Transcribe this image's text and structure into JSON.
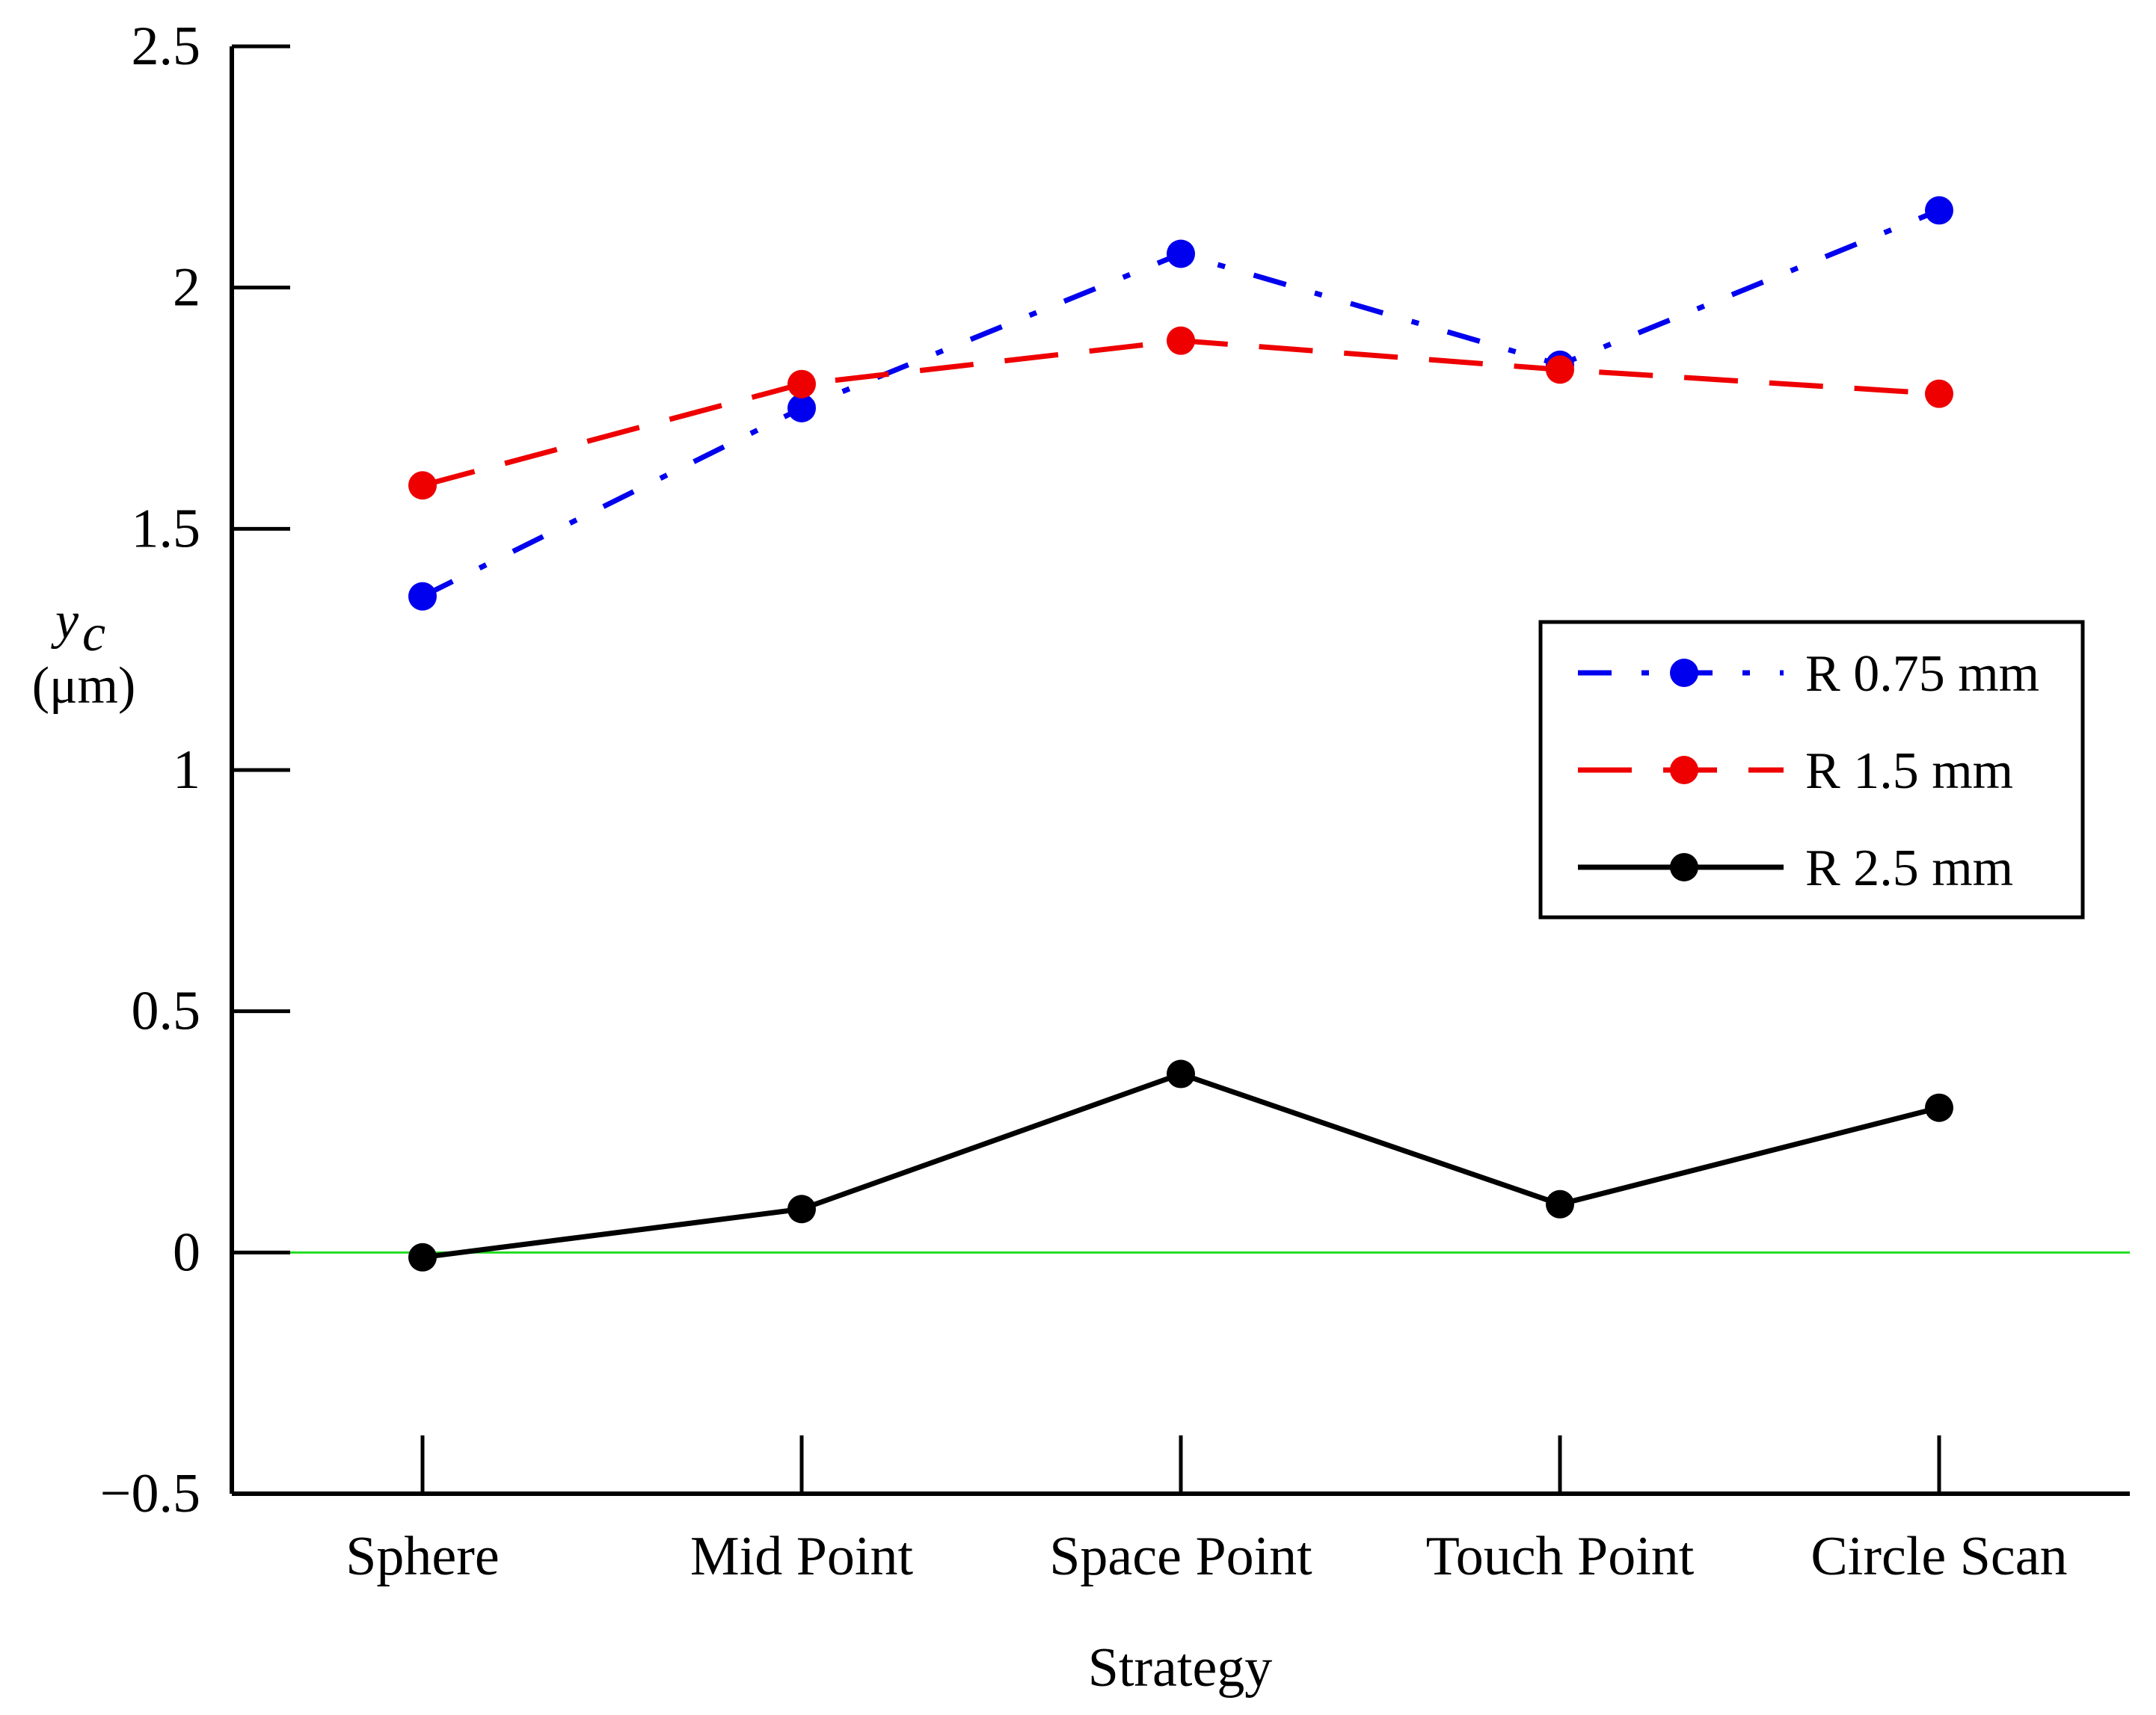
{
  "chart_data": {
    "type": "line",
    "title": "",
    "xlabel": "Strategy",
    "ylabel_symbol": "y",
    "ylabel_subscript": "c",
    "ylabel_unit": "(μm)",
    "categories": [
      "Sphere",
      "Mid Point",
      "Space Point",
      "Touch Point",
      "Circle Scan"
    ],
    "ylim": [
      -0.5,
      2.5
    ],
    "yticks": [
      -0.5,
      0,
      0.5,
      1,
      1.5,
      2,
      2.5
    ],
    "ytick_labels": [
      "−0.5",
      "0",
      "0.5",
      "1",
      "1.5",
      "2",
      "2.5"
    ],
    "reference_line": {
      "y": 0,
      "color": "#22dd22"
    },
    "legend_position": "right-middle",
    "series": [
      {
        "name": "R 0.75 mm",
        "color": "#0000ee",
        "style": "dash-dot",
        "values": [
          1.36,
          1.75,
          2.07,
          1.84,
          2.16
        ]
      },
      {
        "name": "R 1.5 mm",
        "color": "#ee0000",
        "style": "dashed",
        "values": [
          1.59,
          1.8,
          1.89,
          1.83,
          1.78
        ]
      },
      {
        "name": "R 2.5 mm",
        "color": "#000000",
        "style": "solid",
        "values": [
          -0.01,
          0.09,
          0.37,
          0.1,
          0.3
        ]
      }
    ]
  }
}
